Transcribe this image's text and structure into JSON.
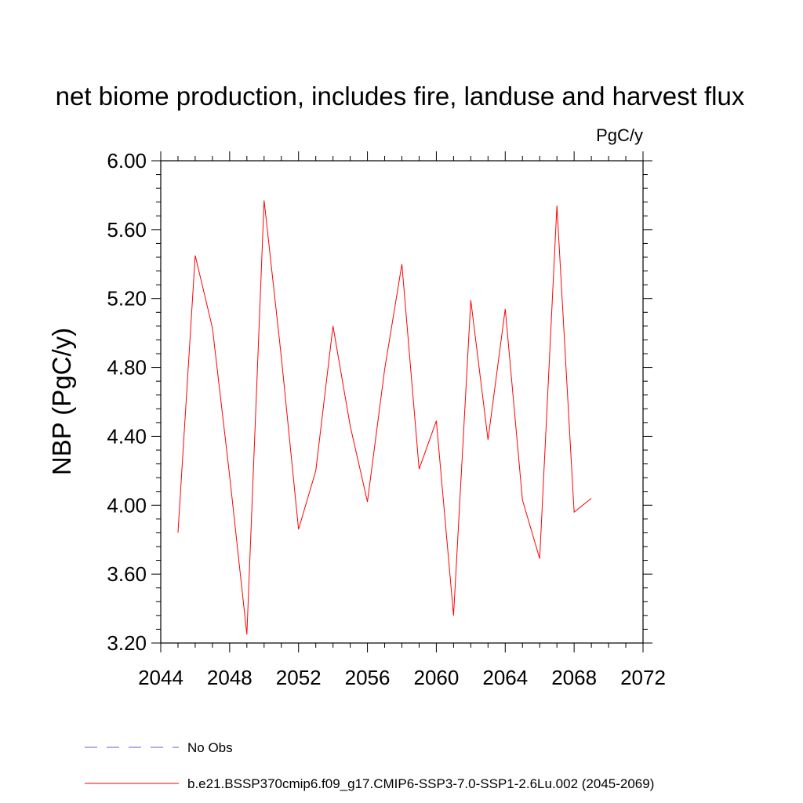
{
  "chart_data": {
    "type": "line",
    "title": "net biome production, includes fire, landuse and harvest flux",
    "units_label": "PgC/y",
    "ylabel": "NBP  (PgC/y)",
    "xlabel": "",
    "xlim": [
      2044,
      2072
    ],
    "ylim": [
      3.2,
      6.0
    ],
    "x_ticks": [
      "2044",
      "2048",
      "2052",
      "2056",
      "2060",
      "2064",
      "2068",
      "2072"
    ],
    "y_ticks": [
      "3.20",
      "3.60",
      "4.00",
      "4.40",
      "4.80",
      "5.20",
      "5.60",
      "6.00"
    ],
    "grid": false,
    "legend_position": "bottom",
    "series": [
      {
        "name": "b.e21.BSSP370cmip6.f09_g17.CMIP6-SSP3-7.0-SSP1-2.6Lu.002 (2045-2069)",
        "color": "#ff0000",
        "style": "solid",
        "x": [
          2045,
          2046,
          2047,
          2048,
          2049,
          2050,
          2051,
          2052,
          2053,
          2054,
          2055,
          2056,
          2057,
          2058,
          2059,
          2060,
          2061,
          2062,
          2063,
          2064,
          2065,
          2066,
          2067,
          2068,
          2069
        ],
        "y": [
          3.84,
          5.45,
          5.03,
          4.17,
          3.25,
          5.77,
          4.86,
          3.86,
          4.2,
          5.04,
          4.46,
          4.02,
          4.79,
          5.4,
          4.21,
          4.49,
          3.36,
          5.19,
          4.38,
          5.14,
          4.03,
          3.69,
          5.74,
          3.96,
          4.04
        ]
      }
    ],
    "legend": [
      {
        "label": "No Obs",
        "color": "#6a5acd",
        "style": "dashed"
      },
      {
        "label": "b.e21.BSSP370cmip6.f09_g17.CMIP6-SSP3-7.0-SSP1-2.6Lu.002 (2045-2069)",
        "color": "#ff0000",
        "style": "solid"
      }
    ]
  }
}
